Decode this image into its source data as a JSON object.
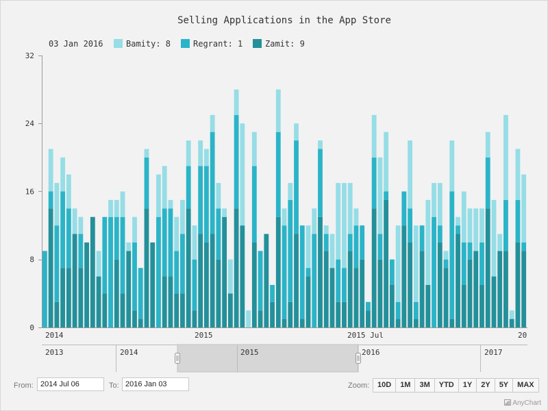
{
  "chart_data": {
    "type": "bar",
    "stacked": true,
    "title": "Selling Applications in the App Store",
    "legend": {
      "date": "03 Jan 2016",
      "items": [
        {
          "name": "Bamity",
          "value": "8",
          "label": "Bamity: 8",
          "color": "#96dde6"
        },
        {
          "name": "Regrant",
          "value": "1",
          "label": "Regrant: 1",
          "color": "#2bb4c8"
        },
        {
          "name": "Zamit",
          "value": "9",
          "label": "Zamit: 9",
          "color": "#23909a"
        }
      ]
    },
    "ylim": [
      0,
      32
    ],
    "yticks": [
      "0",
      "8",
      "16",
      "24",
      "32"
    ],
    "xticks": [
      "2014",
      "2015",
      "2015 Jul",
      "20"
    ],
    "series": [
      {
        "name": "Zamit",
        "color": "#23909a",
        "values": [
          0,
          14,
          3,
          7,
          7,
          11,
          7,
          10,
          13,
          6,
          4,
          0,
          8,
          4,
          9,
          2,
          1,
          14,
          10,
          0,
          6,
          6,
          4,
          4,
          14,
          2,
          11,
          10,
          11,
          8,
          13,
          4,
          14,
          12,
          0,
          10,
          2,
          11,
          3,
          13,
          1,
          3,
          11,
          1,
          6,
          0,
          13,
          9,
          7,
          3,
          3,
          9,
          7,
          8,
          2,
          14,
          8,
          15,
          5,
          1,
          12,
          10,
          1,
          9,
          5,
          0,
          10,
          7,
          1,
          11,
          5,
          8,
          9,
          5,
          14,
          6,
          9,
          9,
          1,
          10,
          9
        ]
      },
      {
        "name": "Regrant",
        "color": "#2bb4c8",
        "values": [
          9,
          2,
          9,
          9,
          7,
          0,
          4,
          0,
          0,
          0,
          9,
          13,
          5,
          9,
          0,
          8,
          6,
          6,
          0,
          13,
          8,
          8,
          5,
          7,
          5,
          6,
          8,
          9,
          12,
          6,
          0,
          0,
          11,
          0,
          0,
          9,
          7,
          0,
          2,
          10,
          11,
          12,
          11,
          11,
          1,
          11,
          8,
          2,
          0,
          5,
          4,
          2,
          5,
          4,
          1,
          6,
          3,
          1,
          3,
          2,
          4,
          4,
          2,
          3,
          0,
          13,
          2,
          1,
          15,
          1,
          5,
          2,
          0,
          5,
          6,
          0,
          0,
          6,
          0,
          5,
          1
        ]
      },
      {
        "name": "Bamity",
        "color": "#96dde6",
        "values": [
          0,
          5,
          5,
          4,
          4,
          3,
          2,
          0,
          0,
          3,
          0,
          2,
          2,
          3,
          1,
          3,
          0,
          1,
          0,
          5,
          5,
          1,
          4,
          4,
          3,
          4,
          3,
          2,
          2,
          3,
          1,
          4,
          3,
          12,
          2,
          4,
          0,
          0,
          0,
          5,
          2,
          2,
          2,
          0,
          5,
          3,
          1,
          1,
          4,
          9,
          10,
          6,
          2,
          0,
          0,
          5,
          9,
          7,
          0,
          9,
          0,
          8,
          9,
          0,
          10,
          4,
          5,
          1,
          6,
          1,
          6,
          4,
          5,
          4,
          3,
          9,
          2,
          10,
          1,
          6,
          8
        ]
      }
    ]
  },
  "scroller": {
    "labels": [
      "2013",
      "2014",
      "2015",
      "2016",
      "2017"
    ]
  },
  "range": {
    "from_label": "From:",
    "from_value": "2014 Jul 06",
    "to_label": "To:",
    "to_value": "2016 Jan 03"
  },
  "zoom": {
    "label": "Zoom:",
    "buttons": [
      "10D",
      "1M",
      "3M",
      "YTD",
      "1Y",
      "2Y",
      "5Y",
      "MAX"
    ]
  },
  "credits": "AnyChart"
}
